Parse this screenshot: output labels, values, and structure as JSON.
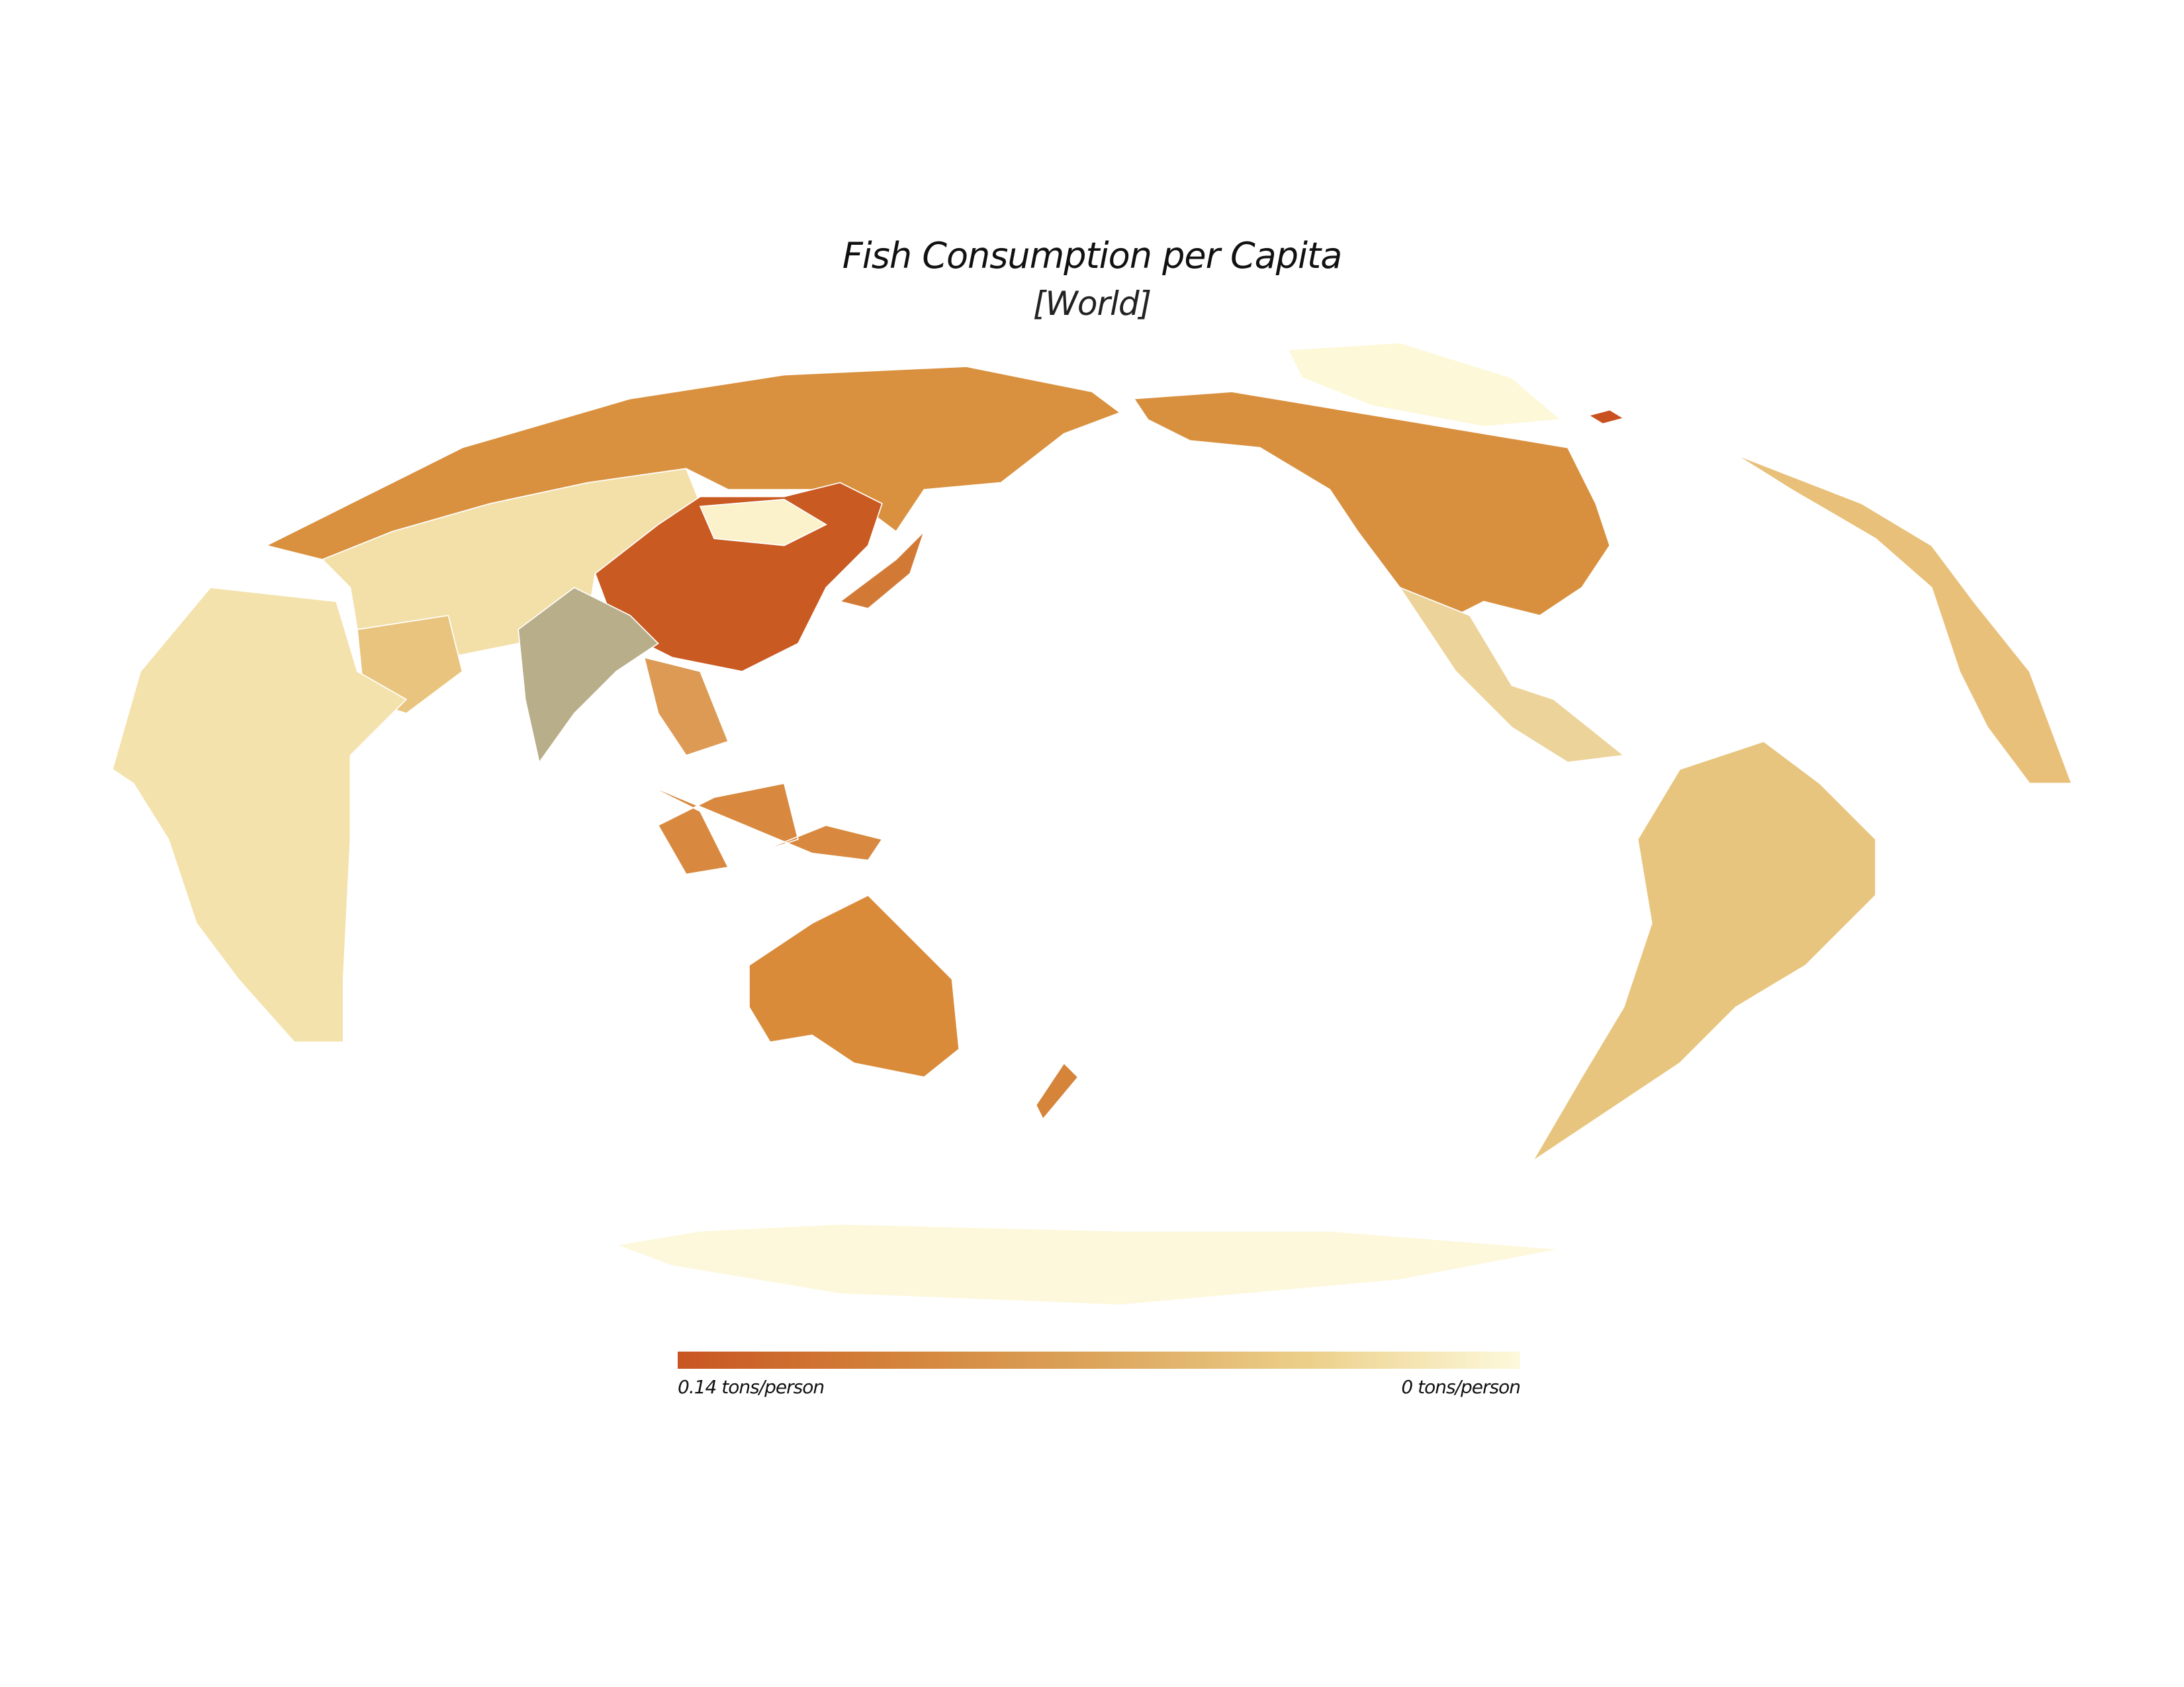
{
  "title": "Fish Consumption per Capita",
  "subtitle": "[World]",
  "legend": {
    "max_label": "0.14 tons/person",
    "min_label": "0 tons/person",
    "max_value": 0.14,
    "min_value": 0,
    "unit": "tons/person",
    "color_stops": [
      "#c85522",
      "#d3823a",
      "#dca55c",
      "#ecd08a",
      "#fdf9dc"
    ]
  },
  "map": {
    "projection": "pacific-centered",
    "regions": [
      {
        "name": "russia",
        "color": "#d9913f"
      },
      {
        "name": "central-asia",
        "color": "#f3dfa8"
      },
      {
        "name": "china",
        "color": "#c95a22"
      },
      {
        "name": "mongolia",
        "color": "#fbf2cc"
      },
      {
        "name": "india",
        "color": "#b9ae8a"
      },
      {
        "name": "arabia",
        "color": "#e9c47e"
      },
      {
        "name": "africa",
        "color": "#f4e2ad"
      },
      {
        "name": "southeast-asia",
        "color": "#dc9a55"
      },
      {
        "name": "japan",
        "color": "#d27a35"
      },
      {
        "name": "indonesia",
        "color": "#d8893f"
      },
      {
        "name": "australia",
        "color": "#d98b3a"
      },
      {
        "name": "new-zealand",
        "color": "#d5843a"
      },
      {
        "name": "north-america",
        "color": "#d8903f"
      },
      {
        "name": "mexico-central-america",
        "color": "#ecd39a"
      },
      {
        "name": "greenland",
        "color": "#fdf8d8"
      },
      {
        "name": "iceland",
        "color": "#c9501f"
      },
      {
        "name": "europe",
        "color": "#e8c07a"
      },
      {
        "name": "south-america",
        "color": "#e8c57f"
      },
      {
        "name": "antarctica",
        "color": "#fdf8dc"
      }
    ]
  }
}
